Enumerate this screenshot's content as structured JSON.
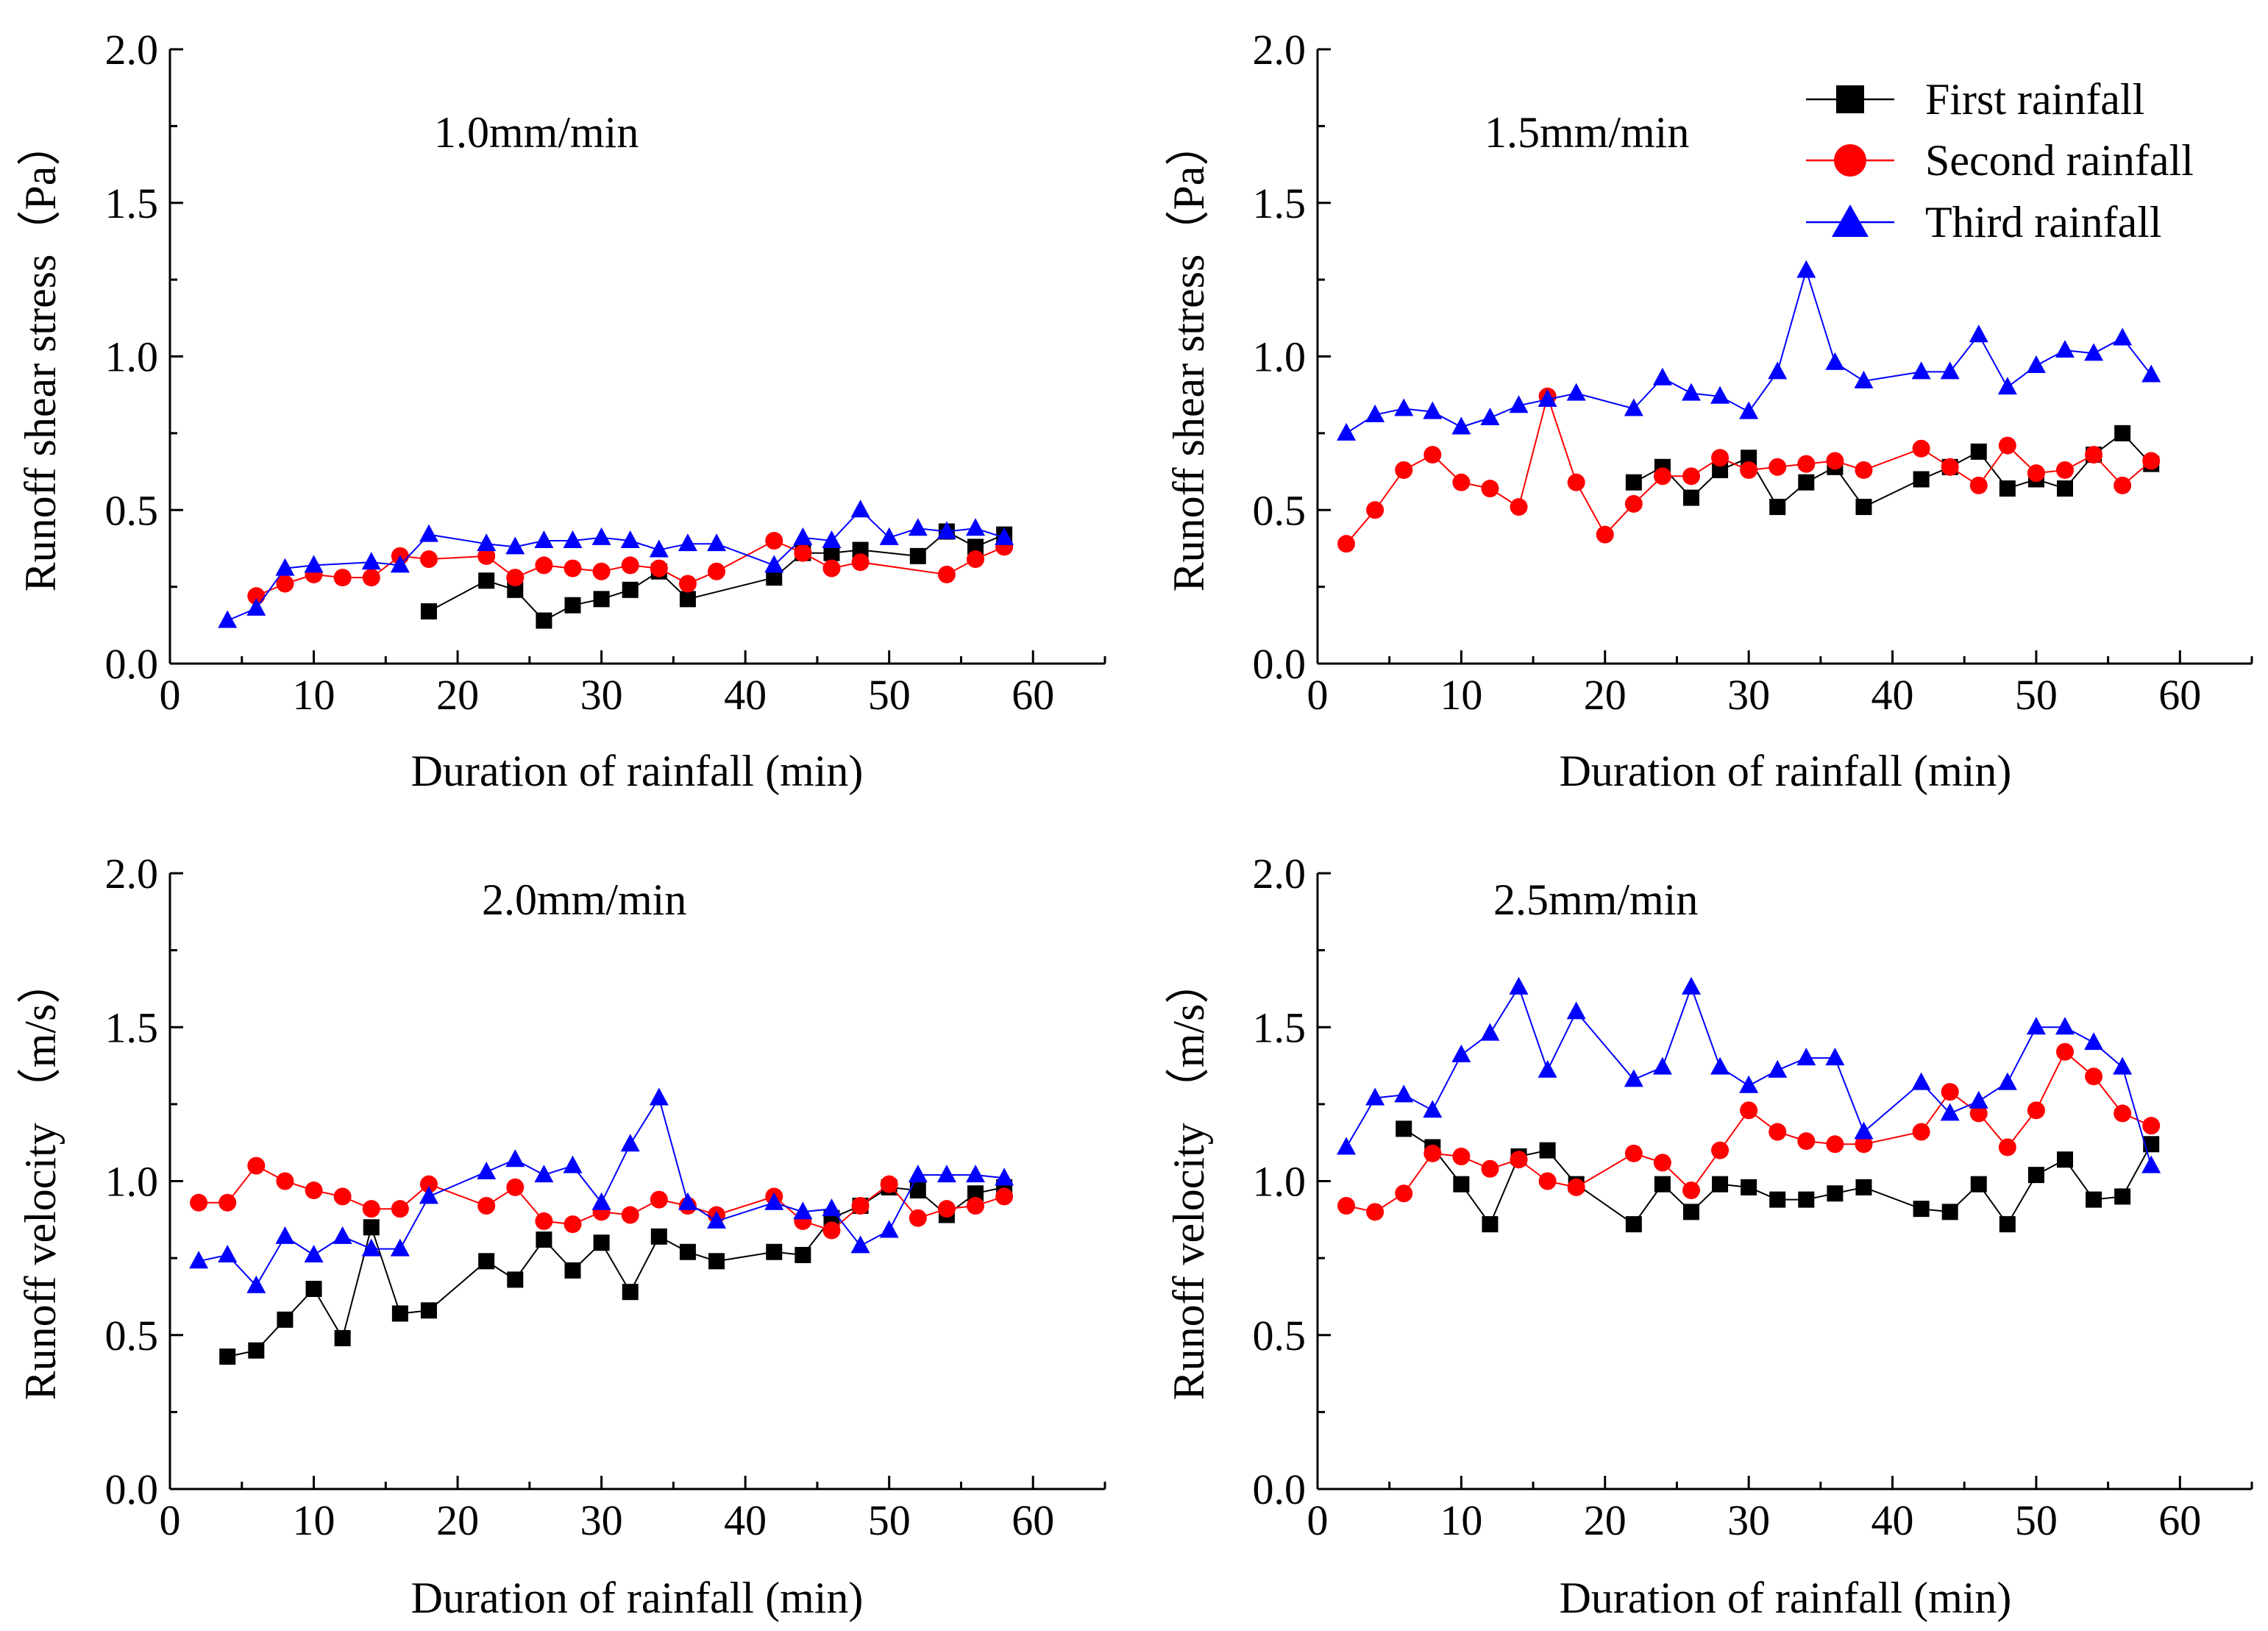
{
  "chart_data": [
    {
      "type": "line",
      "title": "1.0mm/min",
      "xlabel": "Duration of rainfall  (min)",
      "ylabel": "Runoff shear stress（Pa）",
      "xlim": [
        0,
        65
      ],
      "ylim": [
        0.0,
        2.0
      ],
      "xticks": [
        "0",
        "10",
        "20",
        "30",
        "40",
        "50",
        "60"
      ],
      "yticks": [
        "0.0",
        "0.5",
        "1.0",
        "1.5",
        "2.0"
      ],
      "series": [
        {
          "name": "First rainfall",
          "x": [
            18,
            22,
            24,
            26,
            28,
            30,
            32,
            34,
            36,
            42,
            44,
            46,
            48,
            52,
            54,
            56,
            58
          ],
          "y": [
            0.17,
            0.27,
            0.24,
            0.14,
            0.19,
            0.21,
            0.24,
            0.3,
            0.21,
            0.28,
            0.36,
            0.36,
            0.37,
            0.35,
            0.43,
            0.38,
            0.42
          ]
        },
        {
          "name": "Second rainfall",
          "x": [
            6,
            8,
            10,
            12,
            14,
            16,
            18,
            22,
            24,
            26,
            28,
            30,
            32,
            34,
            36,
            38,
            42,
            44,
            46,
            48,
            54,
            56,
            58
          ],
          "y": [
            0.22,
            0.26,
            0.29,
            0.28,
            0.28,
            0.35,
            0.34,
            0.35,
            0.28,
            0.32,
            0.31,
            0.3,
            0.32,
            0.31,
            0.26,
            0.3,
            0.4,
            0.36,
            0.31,
            0.33,
            0.29,
            0.34,
            0.38
          ]
        },
        {
          "name": "Third rainfall",
          "x": [
            4,
            6,
            8,
            10,
            14,
            16,
            18,
            22,
            24,
            26,
            28,
            30,
            32,
            34,
            36,
            38,
            42,
            44,
            46,
            48,
            50,
            52,
            54,
            56,
            58
          ],
          "y": [
            0.14,
            0.18,
            0.31,
            0.32,
            0.33,
            0.32,
            0.42,
            0.39,
            0.38,
            0.4,
            0.4,
            0.41,
            0.4,
            0.37,
            0.39,
            0.39,
            0.32,
            0.41,
            0.4,
            0.5,
            0.41,
            0.44,
            0.43,
            0.44,
            0.41
          ]
        }
      ]
    },
    {
      "type": "line",
      "title": "1.5mm/min",
      "xlabel": "Duration of rainfall  (min)",
      "ylabel": "Runoff shear stress（Pa）",
      "xlim": [
        0,
        65
      ],
      "ylim": [
        0.0,
        2.0
      ],
      "xticks": [
        "0",
        "10",
        "20",
        "30",
        "40",
        "50",
        "60"
      ],
      "yticks": [
        "0.0",
        "0.5",
        "1.0",
        "1.5",
        "2.0"
      ],
      "series": [
        {
          "name": "First rainfall",
          "x": [
            22,
            24,
            26,
            28,
            30,
            32,
            34,
            36,
            38,
            42,
            44,
            46,
            48,
            50,
            52,
            54,
            56,
            58
          ],
          "y": [
            0.59,
            0.64,
            0.54,
            0.63,
            0.67,
            0.51,
            0.59,
            0.64,
            0.51,
            0.6,
            0.64,
            0.69,
            0.57,
            0.6,
            0.57,
            0.68,
            0.75,
            0.65
          ]
        },
        {
          "name": "Second rainfall",
          "x": [
            2,
            4,
            6,
            8,
            10,
            12,
            14,
            16,
            18,
            20,
            22,
            24,
            26,
            28,
            30,
            32,
            34,
            36,
            38,
            42,
            44,
            46,
            48,
            50,
            52,
            54,
            56,
            58
          ],
          "y": [
            0.39,
            0.5,
            0.63,
            0.68,
            0.59,
            0.57,
            0.51,
            0.87,
            0.59,
            0.42,
            0.52,
            0.61,
            0.61,
            0.67,
            0.63,
            0.64,
            0.65,
            0.66,
            0.63,
            0.7,
            0.64,
            0.58,
            0.71,
            0.62,
            0.63,
            0.68,
            0.58,
            0.66
          ]
        },
        {
          "name": "Third rainfall",
          "x": [
            2,
            4,
            6,
            8,
            10,
            12,
            14,
            16,
            18,
            22,
            24,
            26,
            28,
            30,
            32,
            34,
            36,
            38,
            42,
            44,
            46,
            48,
            50,
            52,
            54,
            56,
            58
          ],
          "y": [
            0.75,
            0.81,
            0.83,
            0.82,
            0.77,
            0.8,
            0.84,
            0.86,
            0.88,
            0.83,
            0.93,
            0.88,
            0.87,
            0.82,
            0.95,
            1.28,
            0.98,
            0.92,
            0.95,
            0.95,
            1.07,
            0.9,
            0.97,
            1.02,
            1.01,
            1.06,
            0.94
          ]
        }
      ],
      "legend": [
        "First rainfall",
        "Second rainfall",
        "Third rainfall"
      ]
    },
    {
      "type": "line",
      "title": "2.0mm/min",
      "xlabel": "Duration of rainfall  (min)",
      "ylabel": "Runoff velocity （m/s）",
      "xlim": [
        0,
        65
      ],
      "ylim": [
        0.0,
        2.0
      ],
      "xticks": [
        "0",
        "10",
        "20",
        "30",
        "40",
        "50",
        "60"
      ],
      "yticks": [
        "0.0",
        "0.5",
        "1.0",
        "1.5",
        "2.0"
      ],
      "series": [
        {
          "name": "First rainfall",
          "x": [
            4,
            6,
            8,
            10,
            12,
            14,
            16,
            18,
            22,
            24,
            26,
            28,
            30,
            32,
            34,
            36,
            38,
            42,
            44,
            46,
            48,
            50,
            52,
            54,
            56,
            58
          ],
          "y": [
            0.43,
            0.45,
            0.55,
            0.65,
            0.49,
            0.85,
            0.57,
            0.58,
            0.74,
            0.68,
            0.81,
            0.71,
            0.8,
            0.64,
            0.82,
            0.77,
            0.74,
            0.77,
            0.76,
            0.88,
            0.92,
            0.98,
            0.97,
            0.89,
            0.96,
            0.98
          ]
        },
        {
          "name": "Second rainfall",
          "x": [
            2,
            4,
            6,
            8,
            10,
            12,
            14,
            16,
            18,
            22,
            24,
            26,
            28,
            30,
            32,
            34,
            36,
            38,
            42,
            44,
            46,
            48,
            50,
            52,
            54,
            56,
            58
          ],
          "y": [
            0.93,
            0.93,
            1.05,
            1.0,
            0.97,
            0.95,
            0.91,
            0.91,
            0.99,
            0.92,
            0.98,
            0.87,
            0.86,
            0.9,
            0.89,
            0.94,
            0.92,
            0.89,
            0.95,
            0.87,
            0.84,
            0.92,
            0.99,
            0.88,
            0.91,
            0.92,
            0.95
          ]
        },
        {
          "name": "Third rainfall",
          "x": [
            2,
            4,
            6,
            8,
            10,
            12,
            14,
            16,
            18,
            22,
            24,
            26,
            28,
            30,
            32,
            34,
            36,
            38,
            42,
            44,
            46,
            48,
            50,
            52,
            54,
            56,
            58
          ],
          "y": [
            0.74,
            0.76,
            0.66,
            0.82,
            0.76,
            0.82,
            0.78,
            0.78,
            0.95,
            1.03,
            1.07,
            1.02,
            1.05,
            0.93,
            1.12,
            1.27,
            0.93,
            0.87,
            0.93,
            0.9,
            0.91,
            0.79,
            0.84,
            1.02,
            1.02,
            1.02,
            1.01
          ]
        }
      ]
    },
    {
      "type": "line",
      "title": "2.5mm/min",
      "xlabel": "Duration of rainfall  (min)",
      "ylabel": "Runoff velocity （m/s）",
      "xlim": [
        0,
        65
      ],
      "ylim": [
        0.0,
        2.0
      ],
      "xticks": [
        "0",
        "10",
        "20",
        "30",
        "40",
        "50",
        "60"
      ],
      "yticks": [
        "0.0",
        "0.5",
        "1.0",
        "1.5",
        "2.0"
      ],
      "series": [
        {
          "name": "First rainfall",
          "x": [
            6,
            8,
            10,
            12,
            14,
            16,
            18,
            22,
            24,
            26,
            28,
            30,
            32,
            34,
            36,
            38,
            42,
            44,
            46,
            48,
            50,
            52,
            54,
            56,
            58
          ],
          "y": [
            1.17,
            1.11,
            0.99,
            0.86,
            1.08,
            1.1,
            0.99,
            0.86,
            0.99,
            0.9,
            0.99,
            0.98,
            0.94,
            0.94,
            0.96,
            0.98,
            0.91,
            0.9,
            0.99,
            0.86,
            1.02,
            1.07,
            0.94,
            0.95,
            1.12
          ]
        },
        {
          "name": "Second rainfall",
          "x": [
            2,
            4,
            6,
            8,
            10,
            12,
            14,
            16,
            18,
            22,
            24,
            26,
            28,
            30,
            32,
            34,
            36,
            38,
            42,
            44,
            46,
            48,
            50,
            52,
            54,
            56,
            58
          ],
          "y": [
            0.92,
            0.9,
            0.96,
            1.09,
            1.08,
            1.04,
            1.07,
            1.0,
            0.98,
            1.09,
            1.06,
            0.97,
            1.1,
            1.23,
            1.16,
            1.13,
            1.12,
            1.12,
            1.16,
            1.29,
            1.22,
            1.11,
            1.23,
            1.42,
            1.34,
            1.22,
            1.18
          ]
        },
        {
          "name": "Third rainfall",
          "x": [
            2,
            4,
            6,
            8,
            10,
            12,
            14,
            16,
            18,
            22,
            24,
            26,
            28,
            30,
            32,
            34,
            36,
            38,
            42,
            44,
            46,
            48,
            50,
            52,
            54,
            56,
            58
          ],
          "y": [
            1.11,
            1.27,
            1.28,
            1.23,
            1.41,
            1.48,
            1.63,
            1.36,
            1.55,
            1.33,
            1.37,
            1.63,
            1.37,
            1.31,
            1.36,
            1.4,
            1.4,
            1.16,
            1.32,
            1.22,
            1.26,
            1.32,
            1.5,
            1.5,
            1.45,
            1.37,
            1.05
          ]
        }
      ]
    }
  ],
  "colors": {
    "First rainfall": "#000000",
    "Second rainfall": "#ff0000",
    "Third rainfall": "#0000ff"
  },
  "markers": {
    "First rainfall": "square",
    "Second rainfall": "circle",
    "Third rainfall": "triangle"
  }
}
